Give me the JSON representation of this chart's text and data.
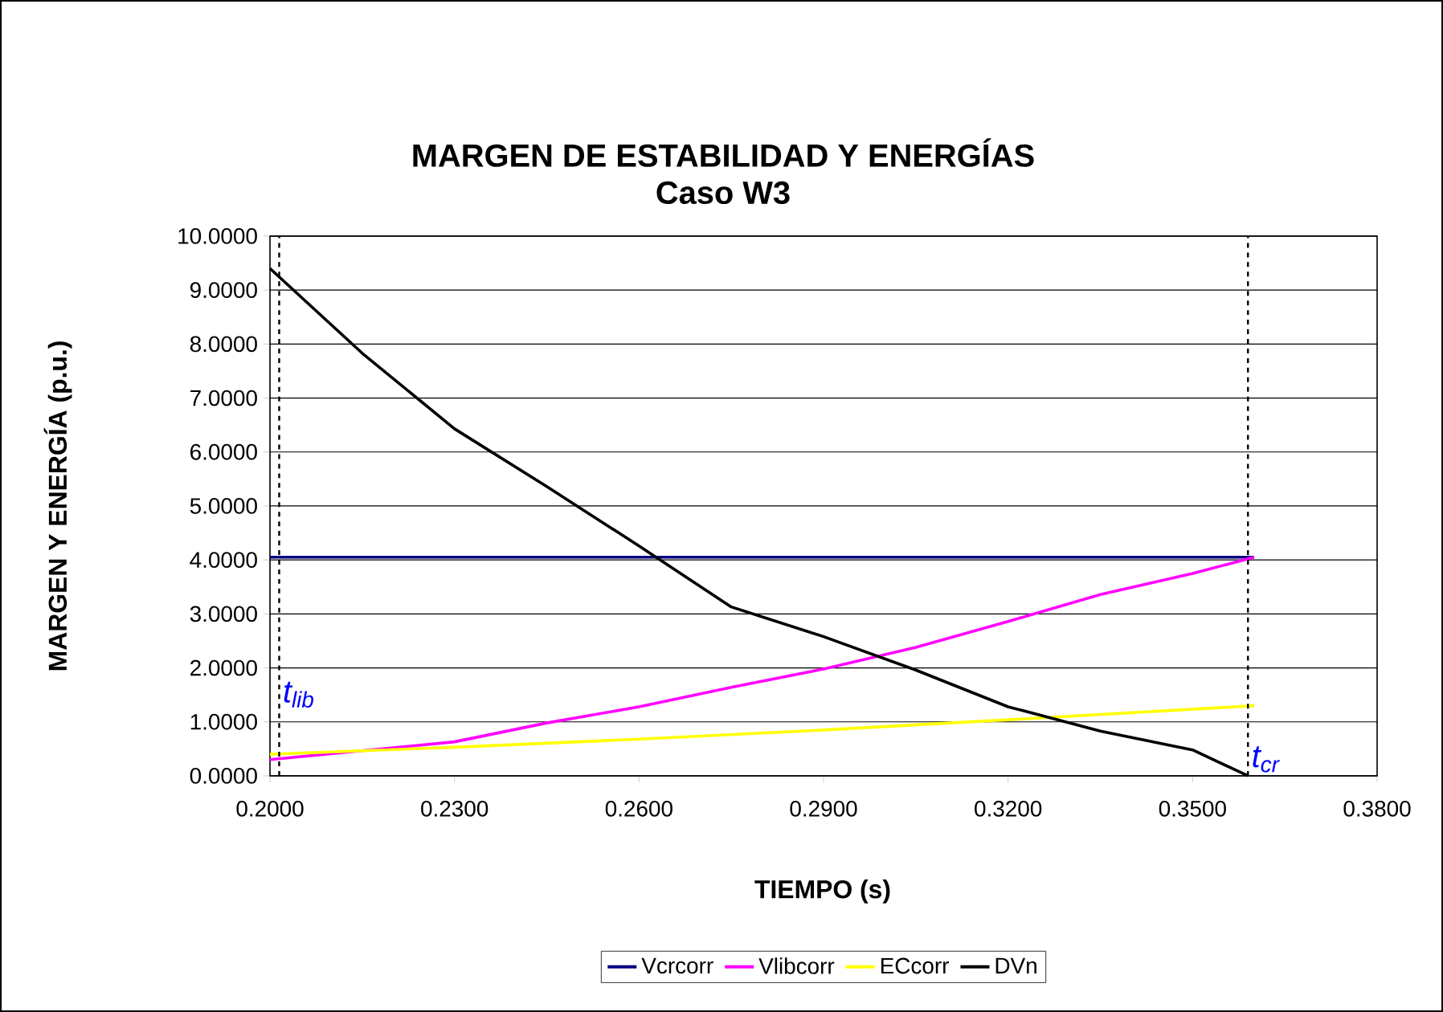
{
  "chart_data": {
    "type": "line",
    "title": "MARGEN DE ESTABILIDAD Y ENERGÍAS",
    "subtitle": "Caso W3",
    "xlabel": "TIEMPO (s)",
    "ylabel": "MARGEN Y ENERGÍA (p.u.)",
    "xlim": [
      0.2,
      0.38
    ],
    "ylim": [
      0,
      10
    ],
    "xticks": [
      {
        "value": 0.2,
        "label": "0.2000"
      },
      {
        "value": 0.23,
        "label": "0.2300"
      },
      {
        "value": 0.26,
        "label": "0.2600"
      },
      {
        "value": 0.29,
        "label": "0.2900"
      },
      {
        "value": 0.32,
        "label": "0.3200"
      },
      {
        "value": 0.35,
        "label": "0.3500"
      },
      {
        "value": 0.38,
        "label": "0.3800"
      }
    ],
    "yticks": [
      {
        "value": 0,
        "label": "0.0000"
      },
      {
        "value": 1,
        "label": "1.0000"
      },
      {
        "value": 2,
        "label": "2.0000"
      },
      {
        "value": 3,
        "label": "3.0000"
      },
      {
        "value": 4,
        "label": "4.0000"
      },
      {
        "value": 5,
        "label": "5.0000"
      },
      {
        "value": 6,
        "label": "6.0000"
      },
      {
        "value": 7,
        "label": "7.0000"
      },
      {
        "value": 8,
        "label": "8.0000"
      },
      {
        "value": 9,
        "label": "9.0000"
      },
      {
        "value": 10,
        "label": "10.0000"
      }
    ],
    "grid": "y",
    "legend": "bottom",
    "line_style": "solid",
    "marker": "none",
    "series": [
      {
        "name": "Vcrcorr",
        "color": "#000080",
        "x": [
          0.2,
          0.36
        ],
        "values": [
          4.05,
          4.05
        ]
      },
      {
        "name": "Vlibcorr",
        "color": "#ff00ff",
        "x": [
          0.2,
          0.23,
          0.245,
          0.26,
          0.275,
          0.29,
          0.305,
          0.32,
          0.335,
          0.35,
          0.36
        ],
        "values": [
          0.3,
          0.63,
          0.98,
          1.28,
          1.64,
          1.98,
          2.38,
          2.86,
          3.36,
          3.75,
          4.05
        ]
      },
      {
        "name": "ECcorr",
        "color": "#ffff00",
        "x": [
          0.2,
          0.23,
          0.26,
          0.29,
          0.32,
          0.36
        ],
        "values": [
          0.4,
          0.53,
          0.68,
          0.85,
          1.04,
          1.3
        ]
      },
      {
        "name": "DVn",
        "color": "#000000",
        "x": [
          0.2,
          0.215,
          0.23,
          0.245,
          0.26,
          0.275,
          0.29,
          0.305,
          0.32,
          0.335,
          0.35,
          0.359
        ],
        "values": [
          9.4,
          7.83,
          6.43,
          5.36,
          4.26,
          3.13,
          2.58,
          1.96,
          1.28,
          0.83,
          0.48,
          0.0
        ]
      }
    ],
    "ref_lines": [
      {
        "axis": "x",
        "value": 0.2015,
        "label": "t$_{lib}$",
        "color": "#000000",
        "line_style": "dashed"
      },
      {
        "axis": "x",
        "value": 0.359,
        "label": "t$_{cr}$",
        "color": "#000000",
        "line_style": "dashed"
      }
    ]
  }
}
